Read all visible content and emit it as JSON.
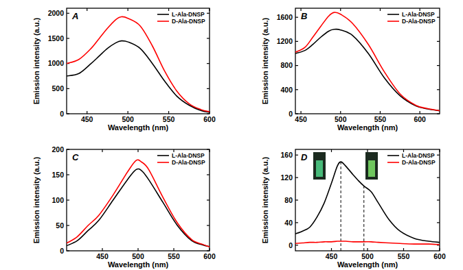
{
  "chart_data": [
    {
      "type": "line",
      "panel": "A",
      "x_label": "Wavelength (nm)",
      "y_label": "Emission intensity (a.u.)",
      "legend": "top-right",
      "x": [
        425,
        440,
        455,
        465,
        475,
        485,
        492,
        500,
        515,
        530,
        545,
        560,
        575,
        590,
        600
      ],
      "xlim": [
        425,
        600
      ],
      "xticks": [
        450,
        500,
        550,
        600
      ],
      "ylim": [
        0,
        2100
      ],
      "yticks": [
        0,
        500,
        1000,
        1500,
        2000
      ],
      "series": [
        {
          "name": "L-Ala-DNSP",
          "color": "#000000",
          "values": [
            750,
            800,
            1000,
            1150,
            1300,
            1410,
            1450,
            1430,
            1300,
            1000,
            650,
            350,
            170,
            60,
            30
          ]
        },
        {
          "name": "D-Ala-DNSP",
          "color": "#ff0000",
          "values": [
            1000,
            1080,
            1300,
            1500,
            1700,
            1870,
            1930,
            1900,
            1750,
            1350,
            850,
            450,
            200,
            80,
            40
          ]
        }
      ]
    },
    {
      "type": "line",
      "panel": "B",
      "x_label": "Wavelength (nm)",
      "y_label": "Emission intensity (a.u.)",
      "legend": "top-right",
      "x": [
        443,
        455,
        465,
        475,
        485,
        492,
        500,
        515,
        535,
        555,
        575,
        595,
        610,
        625
      ],
      "xlim": [
        443,
        625
      ],
      "xticks": [
        450,
        500,
        550,
        600
      ],
      "ylim": [
        0,
        1750
      ],
      "yticks": [
        0,
        400,
        800,
        1200,
        1600
      ],
      "series": [
        {
          "name": "L-Ala-DNSP",
          "color": "#000000",
          "values": [
            1000,
            1050,
            1150,
            1270,
            1370,
            1400,
            1390,
            1300,
            1000,
            600,
            300,
            130,
            80,
            50
          ]
        },
        {
          "name": "D-Ala-DNSP",
          "color": "#ff0000",
          "values": [
            1020,
            1100,
            1270,
            1450,
            1620,
            1680,
            1650,
            1500,
            1150,
            700,
            330,
            140,
            85,
            50
          ]
        }
      ]
    },
    {
      "type": "line",
      "panel": "C",
      "x_label": "Wavelength (nm)",
      "y_label": "Emission intensity (a.u.)",
      "legend": "top-right",
      "x": [
        400,
        415,
        430,
        445,
        465,
        485,
        497,
        505,
        515,
        535,
        555,
        575,
        590,
        600
      ],
      "xlim": [
        400,
        600
      ],
      "xticks": [
        450,
        500,
        550,
        600
      ],
      "ylim": [
        0,
        200
      ],
      "yticks": [
        0,
        50,
        100,
        150,
        200
      ],
      "series": [
        {
          "name": "L-Ala-DNSP",
          "color": "#000000",
          "values": [
            10,
            20,
            40,
            60,
            100,
            140,
            160,
            158,
            140,
            95,
            50,
            20,
            12,
            8
          ]
        },
        {
          "name": "D-Ala-DNSP",
          "color": "#ff0000",
          "values": [
            15,
            28,
            50,
            70,
            110,
            155,
            178,
            175,
            160,
            105,
            55,
            22,
            13,
            8
          ]
        }
      ]
    },
    {
      "type": "line",
      "panel": "D",
      "x_label": "Wavelength (nm)",
      "y_label": "Emission intensity (a.u.)",
      "legend": "top-right",
      "x": [
        400,
        410,
        420,
        430,
        440,
        450,
        458,
        463,
        470,
        480,
        487,
        495,
        505,
        515,
        530,
        545,
        565,
        585,
        600
      ],
      "xlim": [
        400,
        600
      ],
      "xticks": [
        450,
        500,
        550,
        600
      ],
      "ylim": [
        -10,
        170
      ],
      "yticks": [
        0,
        40,
        80,
        120,
        160
      ],
      "reference_lines": [
        463,
        495
      ],
      "series": [
        {
          "name": "L-Ala-DNSP",
          "color": "#000000",
          "values": [
            20,
            25,
            32,
            50,
            75,
            110,
            140,
            148,
            140,
            125,
            115,
            105,
            95,
            75,
            45,
            25,
            12,
            7,
            5
          ]
        },
        {
          "name": "D-Ala-DNSP",
          "color": "#ff0000",
          "values": [
            3,
            4,
            5,
            5,
            6,
            6,
            7,
            7,
            7,
            6,
            6,
            6,
            6,
            5,
            4,
            3,
            2,
            2,
            1
          ]
        }
      ]
    }
  ]
}
